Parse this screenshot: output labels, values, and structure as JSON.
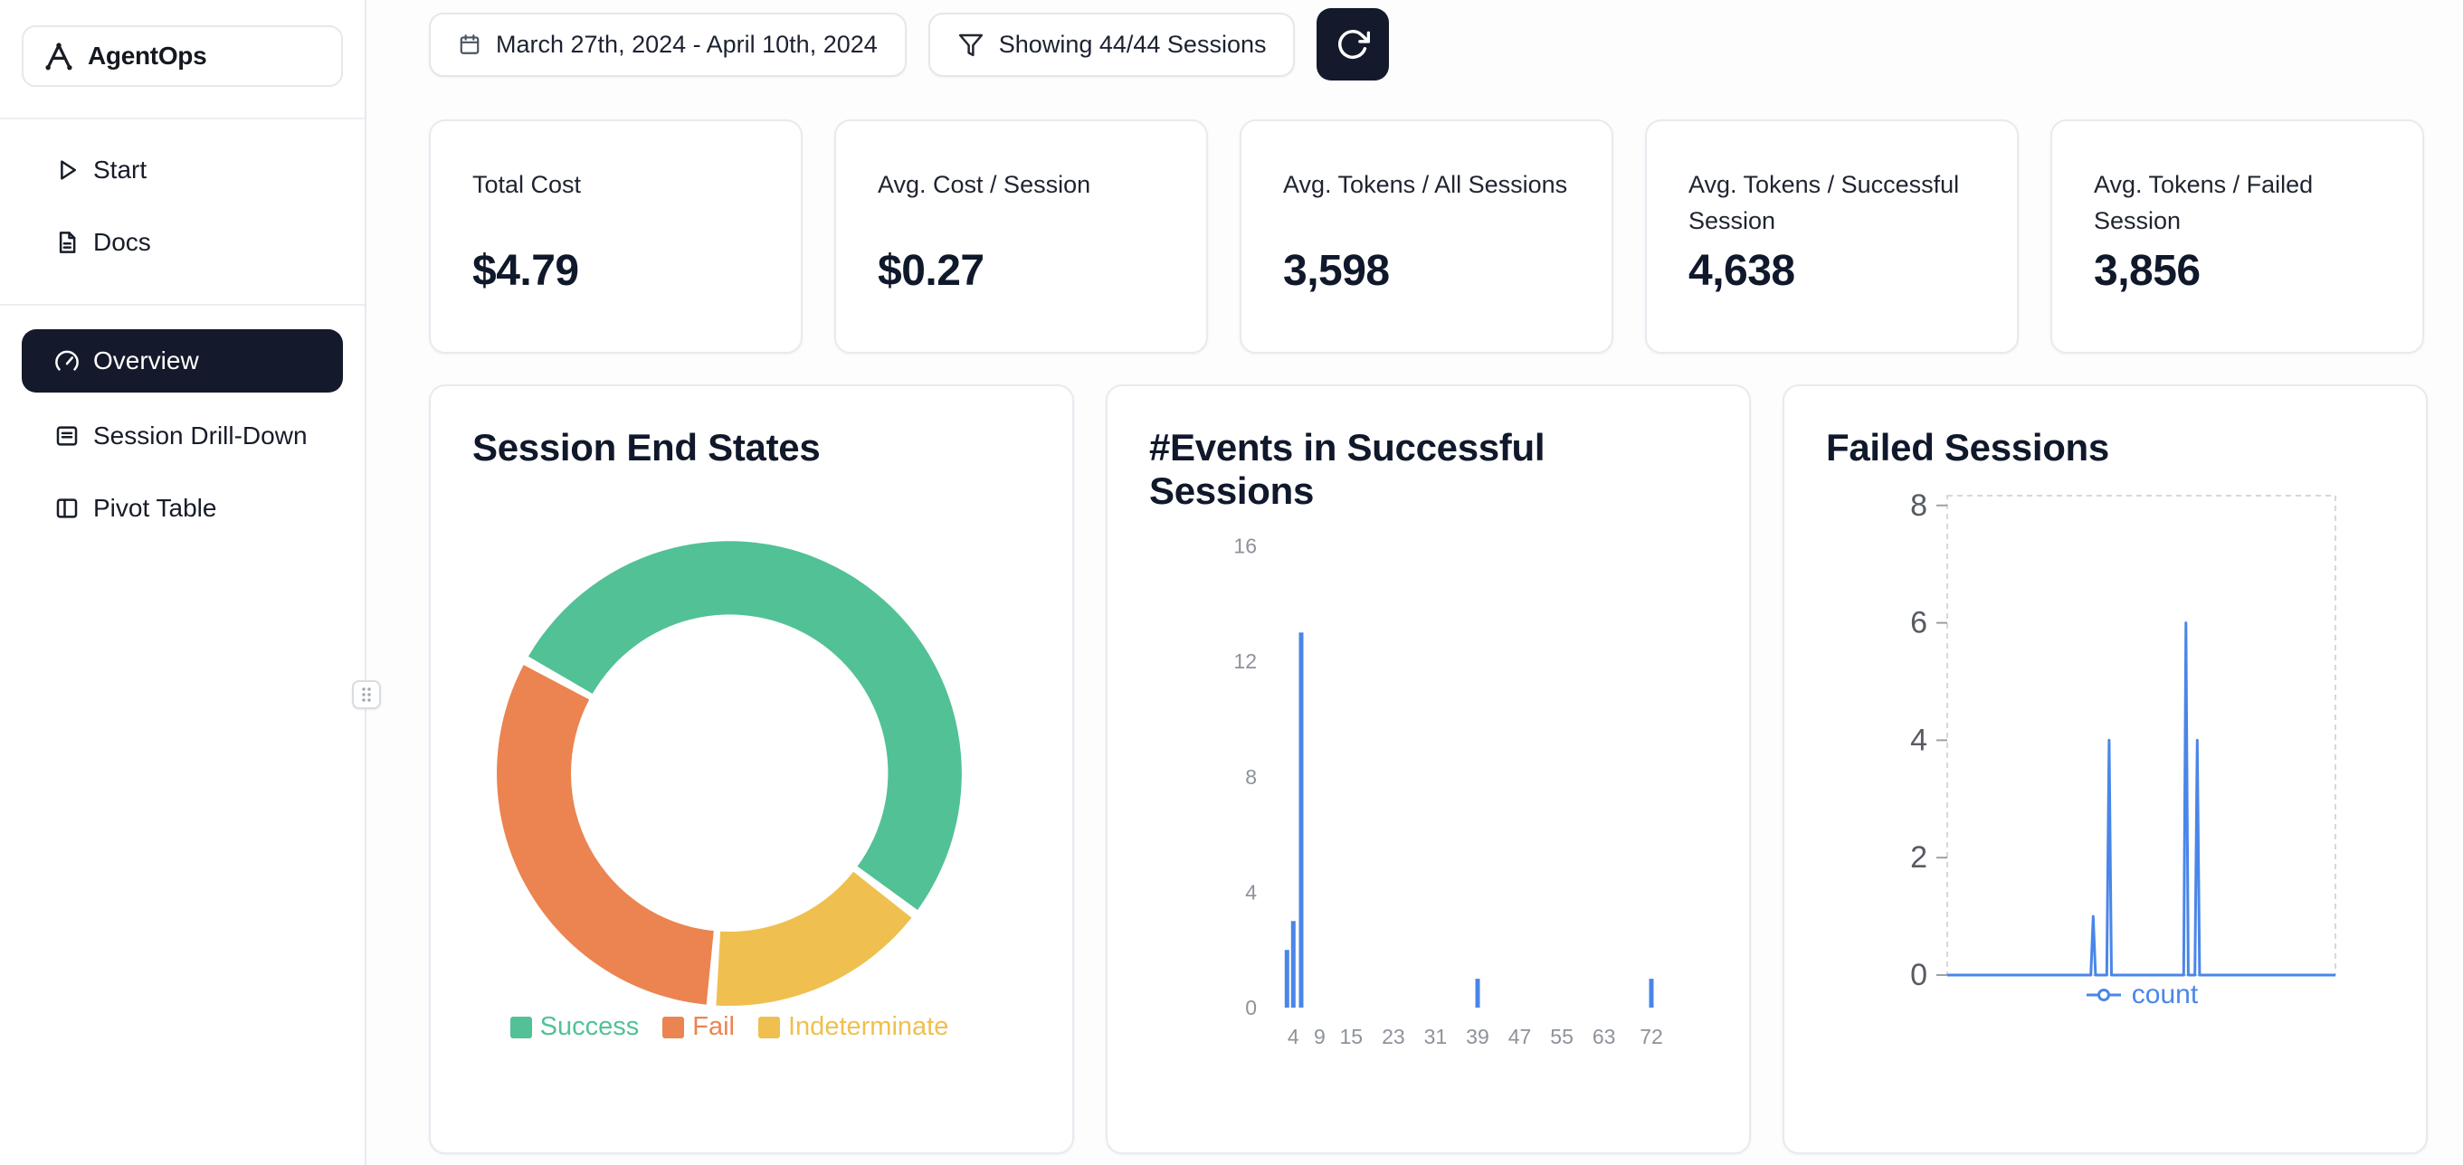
{
  "app": {
    "name": "AgentOps"
  },
  "sidebar": {
    "items": [
      {
        "label": "Start"
      },
      {
        "label": "Docs"
      },
      {
        "label": "Overview",
        "active": true
      },
      {
        "label": "Session Drill-Down"
      },
      {
        "label": "Pivot Table"
      }
    ]
  },
  "toolbar": {
    "date_range": "March 27th, 2024 - April 10th, 2024",
    "filter_label": "Showing 44/44 Sessions"
  },
  "stats": [
    {
      "label": "Total Cost",
      "value": "$4.79"
    },
    {
      "label": "Avg. Cost / Session",
      "value": "$0.27"
    },
    {
      "label": "Avg. Tokens / All Sessions",
      "value": "3,598"
    },
    {
      "label": "Avg. Tokens / Successful Session",
      "value": "4,638"
    },
    {
      "label": "Avg. Tokens / Failed Session",
      "value": "3,856"
    }
  ],
  "chart_data": [
    {
      "type": "pie",
      "title": "Session End States",
      "labels": [
        "Success",
        "Fail",
        "Indeterminate"
      ],
      "values": [
        23,
        14,
        7
      ],
      "colors": [
        "#52c196",
        "#eb8450",
        "#efc04f"
      ],
      "donut": true,
      "start_angle": 299,
      "draw_order": [
        0,
        2,
        1
      ],
      "legend_position": "bottom"
    },
    {
      "type": "bar",
      "title": "#Events in Successful Sessions",
      "x": [
        2.8,
        4,
        5.5,
        39,
        72
      ],
      "values": [
        2,
        3,
        13,
        1,
        1
      ],
      "xticks": [
        4,
        9,
        15,
        23,
        31,
        39,
        47,
        55,
        63,
        72
      ],
      "yticks": [
        0,
        4,
        8,
        12,
        16
      ],
      "xlim": [
        0,
        76
      ],
      "ylim": [
        0,
        16
      ],
      "bar_color": "#4a86e8"
    },
    {
      "type": "line",
      "title": "Failed Sessions",
      "yticks": [
        0,
        2,
        4,
        6,
        8
      ],
      "ylim": [
        0,
        8.2
      ],
      "grid": "dashed-frame",
      "legend_position": "bottom",
      "series": [
        {
          "name": "count",
          "color": "#4a86e8",
          "points": [
            [
              0,
              0
            ],
            [
              0.37,
              0
            ],
            [
              0.376,
              1
            ],
            [
              0.382,
              0
            ],
            [
              0.411,
              0
            ],
            [
              0.417,
              4
            ],
            [
              0.423,
              0
            ],
            [
              0.609,
              0
            ],
            [
              0.615,
              6
            ],
            [
              0.621,
              0
            ],
            [
              0.638,
              0
            ],
            [
              0.644,
              4
            ],
            [
              0.65,
              0
            ],
            [
              1,
              0
            ]
          ]
        }
      ]
    }
  ]
}
